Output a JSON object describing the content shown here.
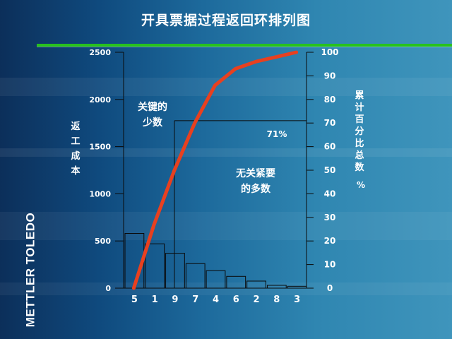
{
  "page": {
    "title": "开具票据过程返回环排列图",
    "brand": "METTLER TOLEDO"
  },
  "colors": {
    "bar_stroke": "#0a0a0a",
    "cumulative_line": "#e8401f",
    "axis": "#0a0a0a",
    "text": "#ffffff",
    "title_rule": "#27c21d"
  },
  "chart_data": {
    "type": "bar",
    "categories": [
      "5",
      "1",
      "9",
      "7",
      "4",
      "6",
      "2",
      "8",
      "3"
    ],
    "values": [
      580,
      470,
      370,
      260,
      185,
      125,
      75,
      30,
      20
    ],
    "cumulative_percent": [
      0,
      27,
      50,
      70,
      86,
      93,
      96,
      98,
      100
    ],
    "ylabel_left": "返\n工\n成\n本",
    "ylabel_right": "累\n计\n百\n分\n比\n总\n数\n%",
    "ylim": [
      0,
      2500
    ],
    "y_ticks_left": [
      "0",
      "500",
      "1000",
      "1500",
      "2000",
      "2500"
    ],
    "y2lim": [
      0,
      100
    ],
    "y_ticks_right": [
      "0",
      "10",
      "20",
      "30",
      "40",
      "50",
      "60",
      "70",
      "80",
      "90",
      "100"
    ],
    "annotations": {
      "vital_few": "关键的\n少数",
      "trivial_many": "无关紧要\n的多数",
      "cutoff_label": "71%",
      "cutoff_percent": 71
    },
    "grid": false
  }
}
